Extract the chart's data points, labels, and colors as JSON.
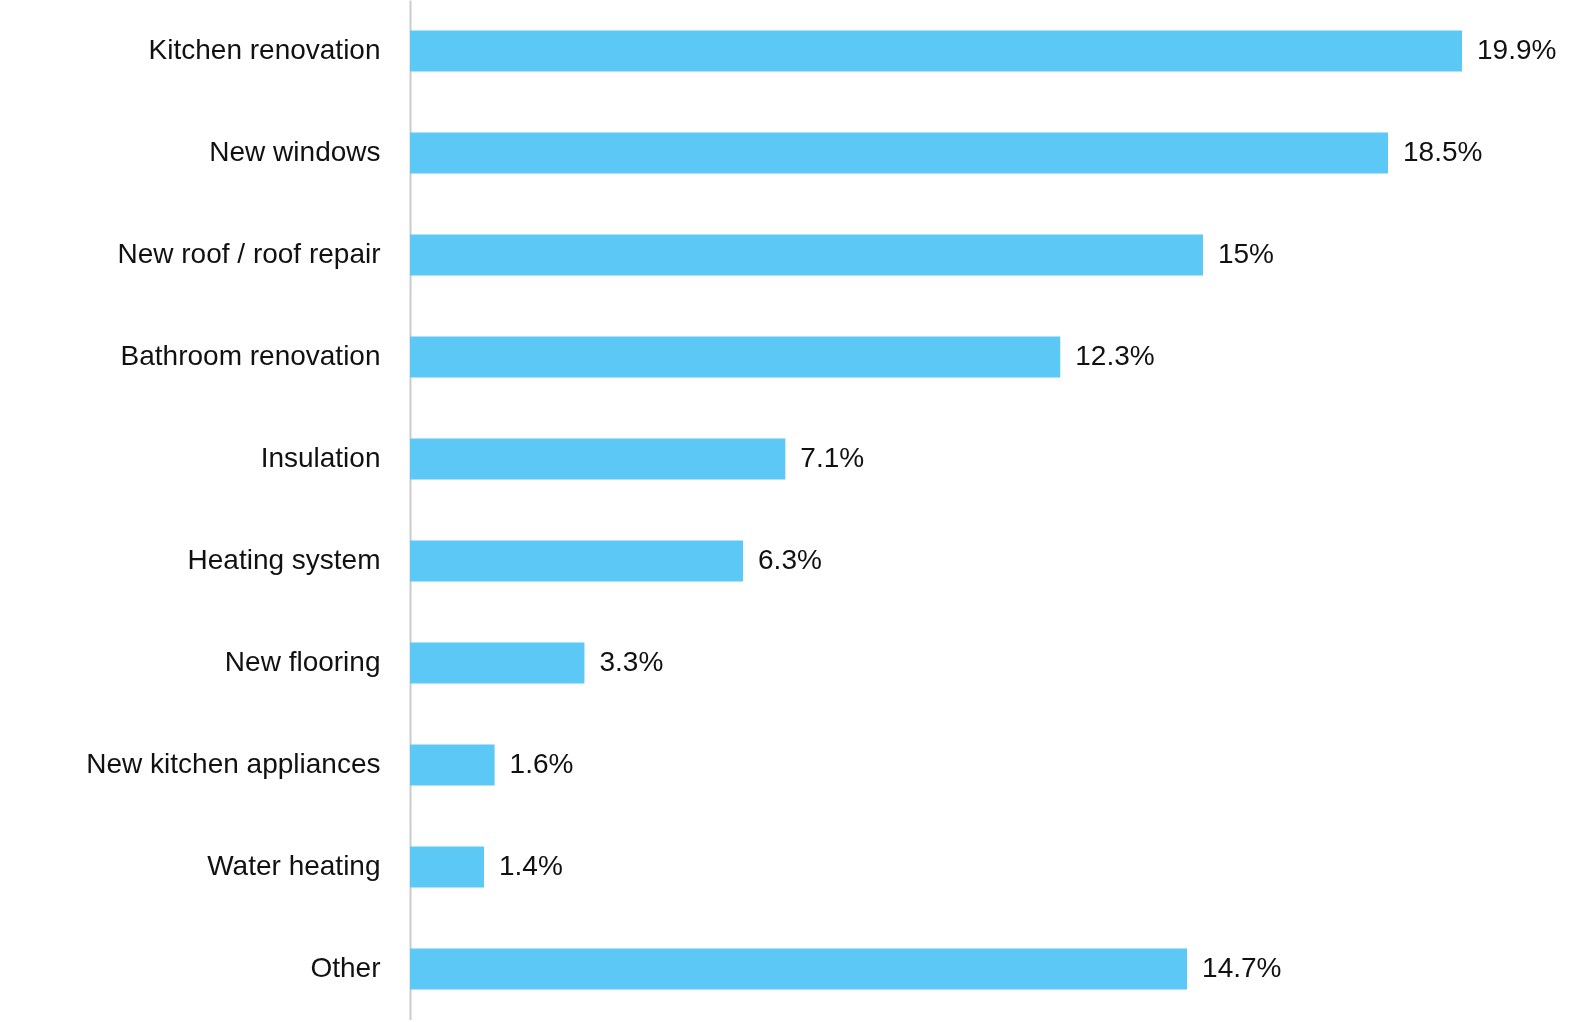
{
  "chart_data": {
    "type": "bar",
    "orientation": "horizontal",
    "categories": [
      "Kitchen renovation",
      "New windows",
      "New roof / roof repair",
      "Bathroom renovation",
      "Insulation",
      "Heating system",
      "New flooring",
      "New kitchen appliances",
      "Water heating",
      "Other"
    ],
    "values": [
      19.9,
      18.5,
      15,
      12.3,
      7.1,
      6.3,
      3.3,
      1.6,
      1.4,
      14.7
    ],
    "value_labels": [
      "19.9%",
      "18.5%",
      "15%",
      "12.3%",
      "7.1%",
      "6.3%",
      "3.3%",
      "1.6%",
      "1.4%",
      "14.7%"
    ],
    "color": "#5bc8f5"
  }
}
